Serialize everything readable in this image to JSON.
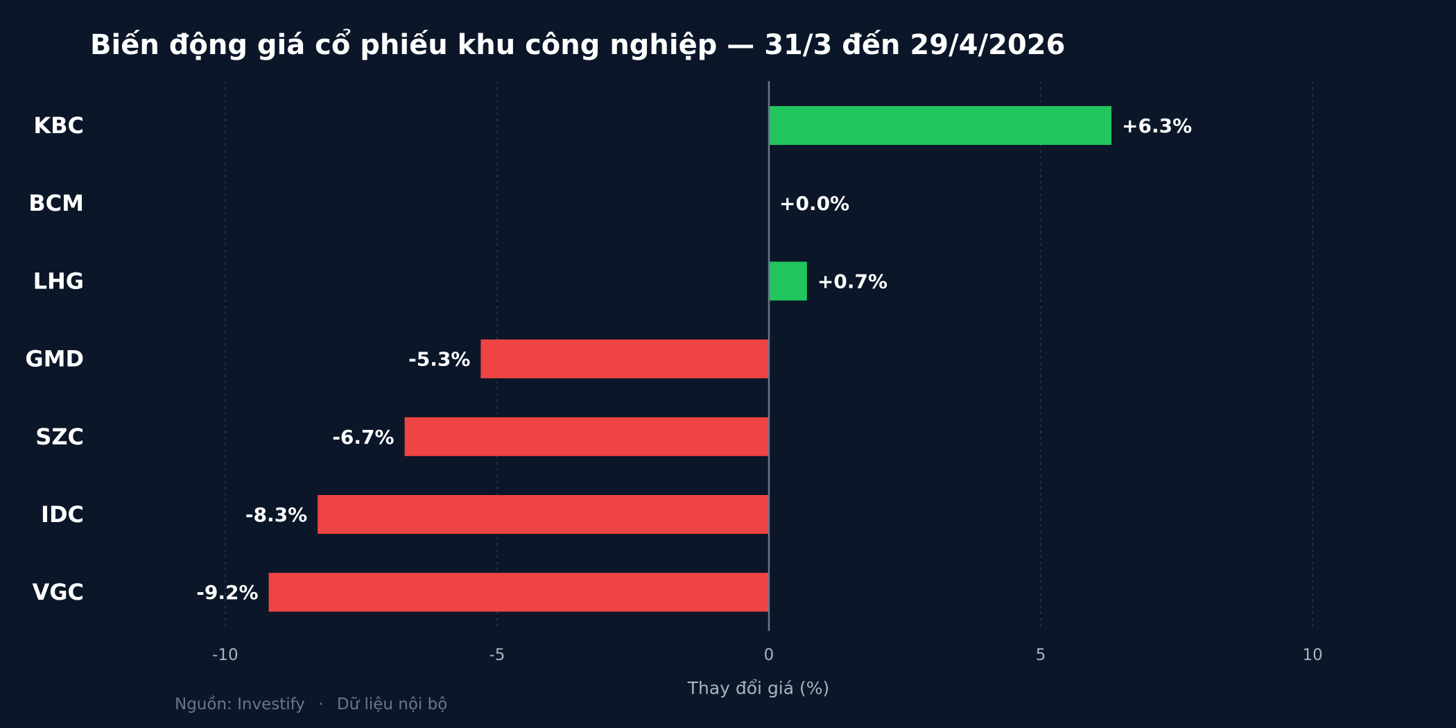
{
  "chart_data": {
    "type": "bar",
    "orientation": "horizontal",
    "title": "Biến động giá cổ phiếu khu công nghiệp — 31/3 đến 29/4/2026",
    "xlabel": "Thay đổi giá (%)",
    "ylabel": "",
    "xlim": [
      -12,
      12
    ],
    "xticks": [
      -10,
      -5,
      0,
      5,
      10
    ],
    "grid": true,
    "categories": [
      "KBC",
      "BCM",
      "LHG",
      "GMD",
      "SZC",
      "IDC",
      "VGC"
    ],
    "values": [
      6.3,
      0.0,
      0.7,
      -5.3,
      -6.7,
      -8.3,
      -9.2
    ],
    "data_labels": [
      "+6.3%",
      "+0.0%",
      "+0.7%",
      "-5.3%",
      "-6.7%",
      "-8.3%",
      "-9.2%"
    ],
    "colors": {
      "positive": "#22c55e",
      "negative": "#ef4444",
      "background": "#0b1628",
      "grid": "#1e3a4d",
      "zero_line": "#6b7788"
    }
  },
  "footer": {
    "source": "Nguồn: Investify",
    "separator": "·",
    "note": "Dữ liệu nội bộ"
  }
}
